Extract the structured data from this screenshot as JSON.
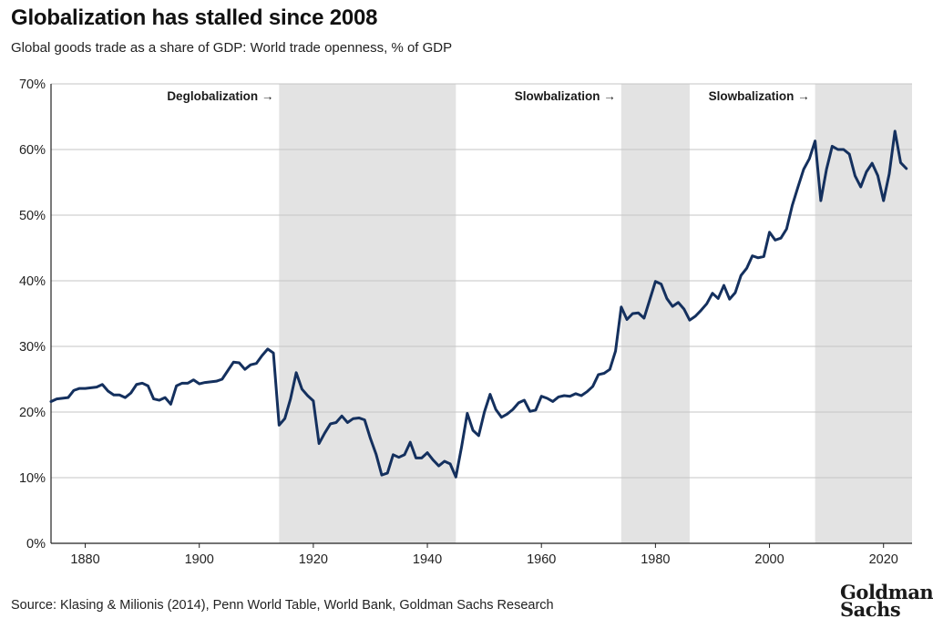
{
  "chart_data": {
    "type": "line",
    "title": "Globalization has stalled since 2008",
    "subtitle": "Global goods trade as a share of GDP: World trade openness, % of GDP",
    "source": "Source: Klasing & Milionis (2014), Penn World Table, World Bank, Goldman Sachs Research",
    "xlim": [
      1874,
      2025
    ],
    "ylim": [
      0,
      70
    ],
    "x_ticks": [
      1880,
      1900,
      1920,
      1940,
      1960,
      1980,
      2000,
      2020
    ],
    "x_tick_labels": [
      "1880",
      "1900",
      "1920",
      "1940",
      "1960",
      "1980",
      "2000",
      "2020"
    ],
    "y_ticks": [
      0,
      10,
      20,
      30,
      40,
      50,
      60,
      70
    ],
    "y_tick_labels": [
      "0%",
      "10%",
      "20%",
      "30%",
      "40%",
      "50%",
      "60%",
      "70%"
    ],
    "grid": true,
    "line_color": "#14305e",
    "band_color": "#e3e3e3",
    "shaded_periods": [
      {
        "start": 1914,
        "end": 1945,
        "label": "Deglobalization →"
      },
      {
        "start": 1974,
        "end": 1986,
        "label": "Slowbalization →"
      },
      {
        "start": 2008,
        "end": 2025,
        "label": "Slowbalization →"
      }
    ],
    "x": [
      1874,
      1875,
      1876,
      1877,
      1878,
      1879,
      1880,
      1881,
      1882,
      1883,
      1884,
      1885,
      1886,
      1887,
      1888,
      1889,
      1890,
      1891,
      1892,
      1893,
      1894,
      1895,
      1896,
      1897,
      1898,
      1899,
      1900,
      1901,
      1902,
      1903,
      1904,
      1905,
      1906,
      1907,
      1908,
      1909,
      1910,
      1911,
      1912,
      1913,
      1914,
      1915,
      1916,
      1917,
      1918,
      1919,
      1920,
      1921,
      1922,
      1923,
      1924,
      1925,
      1926,
      1927,
      1928,
      1929,
      1930,
      1931,
      1932,
      1933,
      1934,
      1935,
      1936,
      1937,
      1938,
      1939,
      1940,
      1941,
      1942,
      1943,
      1944,
      1945,
      1946,
      1947,
      1948,
      1949,
      1950,
      1951,
      1952,
      1953,
      1954,
      1955,
      1956,
      1957,
      1958,
      1959,
      1960,
      1961,
      1962,
      1963,
      1964,
      1965,
      1966,
      1967,
      1968,
      1969,
      1970,
      1971,
      1972,
      1973,
      1974,
      1975,
      1976,
      1977,
      1978,
      1979,
      1980,
      1981,
      1982,
      1983,
      1984,
      1985,
      1986,
      1987,
      1988,
      1989,
      1990,
      1991,
      1992,
      1993,
      1994,
      1995,
      1996,
      1997,
      1998,
      1999,
      2000,
      2001,
      2002,
      2003,
      2004,
      2005,
      2006,
      2007,
      2008,
      2009,
      2010,
      2011,
      2012,
      2013,
      2014,
      2015,
      2016,
      2017,
      2018,
      2019,
      2020,
      2021,
      2022,
      2023,
      2024
    ],
    "series": [
      {
        "values": [
          21.6,
          22.0,
          22.1,
          22.2,
          23.3,
          23.6,
          23.6,
          23.7,
          23.8,
          24.2,
          23.2,
          22.6,
          22.6,
          22.2,
          22.9,
          24.2,
          24.4,
          24.0,
          22.0,
          21.8,
          22.2,
          21.2,
          24.0,
          24.4,
          24.4,
          24.9,
          24.3,
          24.5,
          24.6,
          24.7,
          25.0,
          26.3,
          27.6,
          27.5,
          26.5,
          27.2,
          27.4,
          28.6,
          29.6,
          29.0,
          18.0,
          19.0,
          22.0,
          26.0,
          23.5,
          22.5,
          21.7,
          15.2,
          16.8,
          18.2,
          18.4,
          19.4,
          18.4,
          19.0,
          19.1,
          18.8,
          16.0,
          13.6,
          10.4,
          10.7,
          13.5,
          13.1,
          13.5,
          15.4,
          13.0,
          13.0,
          13.8,
          12.7,
          11.8,
          12.5,
          12.1,
          10.1,
          14.7,
          19.8,
          17.2,
          16.4,
          20.0,
          22.7,
          20.4,
          19.2,
          19.7,
          20.4,
          21.4,
          21.8,
          20.1,
          20.3,
          22.4,
          22.1,
          21.6,
          22.3,
          22.5,
          22.4,
          22.8,
          22.5,
          23.1,
          23.9,
          25.7,
          25.9,
          26.5,
          29.3,
          36.0,
          34.1,
          35.0,
          35.1,
          34.3,
          37.1,
          39.9,
          39.5,
          37.3,
          36.1,
          36.7,
          35.7,
          34.0,
          34.6,
          35.5,
          36.5,
          38.1,
          37.3,
          39.3,
          37.2,
          38.2,
          40.8,
          41.9,
          43.8,
          43.5,
          43.7,
          47.4,
          46.2,
          46.5,
          47.9,
          51.5,
          54.3,
          57.0,
          58.6,
          61.3,
          52.2,
          57.0,
          60.5,
          60.0,
          60.0,
          59.3,
          56.0,
          54.3,
          56.6,
          57.9,
          56.0,
          52.2,
          56.3,
          62.8,
          58.0,
          57.1
        ]
      }
    ]
  }
}
